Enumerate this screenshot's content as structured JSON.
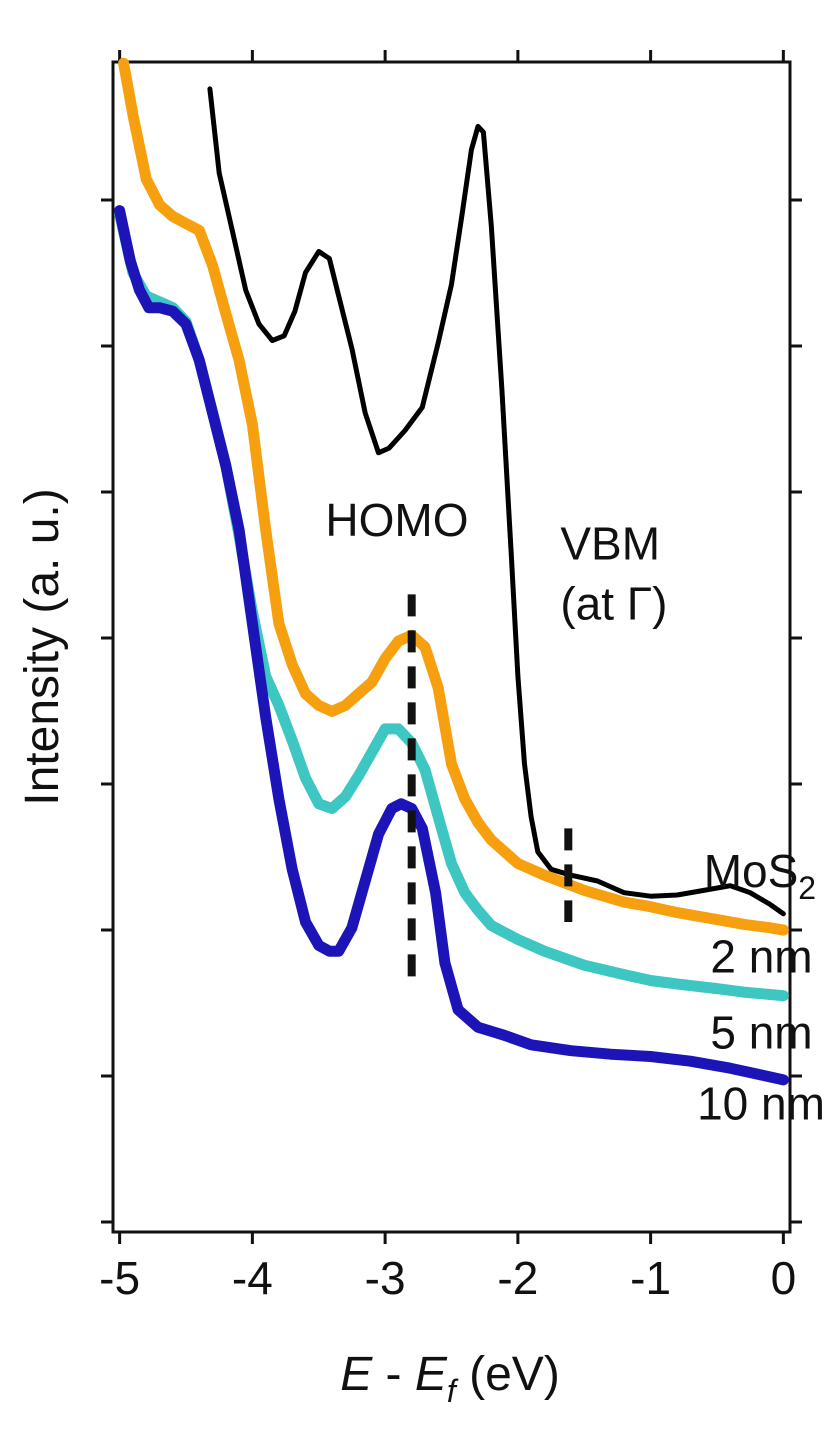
{
  "chart_data": {
    "type": "line",
    "xlabel": {
      "e1": "E",
      "sep": " - ",
      "e2": "E",
      "sub": "f",
      "unit": " (eV)"
    },
    "ylabel": "Intensity (a. u.)",
    "xlim": [
      -5.05,
      0.05
    ],
    "ylim": [
      0,
      1
    ],
    "x_ticks": [
      -5,
      -4,
      -3,
      -2,
      -1,
      0
    ],
    "x_tick_labels": [
      "-5",
      "-4",
      "-3",
      "-2",
      "-1",
      "0"
    ],
    "y_ticks_unlabeled": 8,
    "grid": false,
    "series": [
      {
        "name": "MoS2",
        "color": "#000000",
        "width": 5,
        "points": [
          [
            -4.32,
            0.977
          ],
          [
            -4.25,
            0.905
          ],
          [
            -4.15,
            0.855
          ],
          [
            -4.05,
            0.805
          ],
          [
            -3.95,
            0.776
          ],
          [
            -3.85,
            0.762
          ],
          [
            -3.76,
            0.766
          ],
          [
            -3.68,
            0.787
          ],
          [
            -3.6,
            0.82
          ],
          [
            -3.5,
            0.838
          ],
          [
            -3.42,
            0.832
          ],
          [
            -3.35,
            0.8
          ],
          [
            -3.25,
            0.755
          ],
          [
            -3.15,
            0.7
          ],
          [
            -3.05,
            0.666
          ],
          [
            -2.97,
            0.67
          ],
          [
            -2.85,
            0.685
          ],
          [
            -2.72,
            0.705
          ],
          [
            -2.6,
            0.76
          ],
          [
            -2.5,
            0.81
          ],
          [
            -2.42,
            0.87
          ],
          [
            -2.35,
            0.925
          ],
          [
            -2.3,
            0.945
          ],
          [
            -2.26,
            0.94
          ],
          [
            -2.2,
            0.86
          ],
          [
            -2.12,
            0.72
          ],
          [
            -2.05,
            0.58
          ],
          [
            -2.0,
            0.475
          ],
          [
            -1.95,
            0.4
          ],
          [
            -1.9,
            0.355
          ],
          [
            -1.85,
            0.325
          ],
          [
            -1.75,
            0.31
          ],
          [
            -1.6,
            0.305
          ],
          [
            -1.4,
            0.3
          ],
          [
            -1.2,
            0.29
          ],
          [
            -1.0,
            0.287
          ],
          [
            -0.8,
            0.288
          ],
          [
            -0.6,
            0.292
          ],
          [
            -0.4,
            0.296
          ],
          [
            -0.25,
            0.29
          ],
          [
            -0.1,
            0.28
          ],
          [
            0.0,
            0.272
          ]
        ]
      },
      {
        "name": "2 nm",
        "color": "#f6a00f",
        "width": 11,
        "points": [
          [
            -4.97,
            0.999
          ],
          [
            -4.9,
            0.955
          ],
          [
            -4.8,
            0.9
          ],
          [
            -4.7,
            0.878
          ],
          [
            -4.6,
            0.868
          ],
          [
            -4.5,
            0.862
          ],
          [
            -4.4,
            0.856
          ],
          [
            -4.3,
            0.826
          ],
          [
            -4.2,
            0.785
          ],
          [
            -4.1,
            0.745
          ],
          [
            -4.0,
            0.69
          ],
          [
            -3.9,
            0.6
          ],
          [
            -3.8,
            0.52
          ],
          [
            -3.7,
            0.485
          ],
          [
            -3.6,
            0.46
          ],
          [
            -3.5,
            0.45
          ],
          [
            -3.4,
            0.445
          ],
          [
            -3.3,
            0.45
          ],
          [
            -3.2,
            0.46
          ],
          [
            -3.1,
            0.47
          ],
          [
            -3.0,
            0.49
          ],
          [
            -2.9,
            0.505
          ],
          [
            -2.8,
            0.51
          ],
          [
            -2.7,
            0.5
          ],
          [
            -2.6,
            0.465
          ],
          [
            -2.5,
            0.4
          ],
          [
            -2.4,
            0.37
          ],
          [
            -2.3,
            0.35
          ],
          [
            -2.2,
            0.335
          ],
          [
            -2.0,
            0.315
          ],
          [
            -1.8,
            0.305
          ],
          [
            -1.5,
            0.292
          ],
          [
            -1.2,
            0.282
          ],
          [
            -1.0,
            0.278
          ],
          [
            -0.8,
            0.273
          ],
          [
            -0.5,
            0.267
          ],
          [
            -0.3,
            0.263
          ],
          [
            -0.1,
            0.26
          ],
          [
            0.0,
            0.258
          ]
        ]
      },
      {
        "name": "5 nm",
        "color": "#3ec6c2",
        "width": 11,
        "points": [
          [
            -5.0,
            0.87
          ],
          [
            -4.9,
            0.82
          ],
          [
            -4.8,
            0.8
          ],
          [
            -4.7,
            0.795
          ],
          [
            -4.6,
            0.79
          ],
          [
            -4.5,
            0.778
          ],
          [
            -4.4,
            0.745
          ],
          [
            -4.3,
            0.7
          ],
          [
            -4.2,
            0.655
          ],
          [
            -4.1,
            0.595
          ],
          [
            -4.0,
            0.53
          ],
          [
            -3.9,
            0.475
          ],
          [
            -3.8,
            0.45
          ],
          [
            -3.7,
            0.42
          ],
          [
            -3.6,
            0.388
          ],
          [
            -3.5,
            0.366
          ],
          [
            -3.4,
            0.362
          ],
          [
            -3.3,
            0.372
          ],
          [
            -3.2,
            0.39
          ],
          [
            -3.1,
            0.41
          ],
          [
            -3.0,
            0.43
          ],
          [
            -2.9,
            0.43
          ],
          [
            -2.8,
            0.418
          ],
          [
            -2.7,
            0.395
          ],
          [
            -2.6,
            0.355
          ],
          [
            -2.5,
            0.315
          ],
          [
            -2.4,
            0.29
          ],
          [
            -2.3,
            0.275
          ],
          [
            -2.2,
            0.262
          ],
          [
            -2.0,
            0.25
          ],
          [
            -1.8,
            0.24
          ],
          [
            -1.5,
            0.228
          ],
          [
            -1.2,
            0.22
          ],
          [
            -1.0,
            0.215
          ],
          [
            -0.8,
            0.212
          ],
          [
            -0.5,
            0.208
          ],
          [
            -0.3,
            0.205
          ],
          [
            -0.1,
            0.203
          ],
          [
            0.0,
            0.202
          ]
        ]
      },
      {
        "name": "10 nm",
        "color": "#1d14b8",
        "width": 11,
        "points": [
          [
            -5.0,
            0.873
          ],
          [
            -4.92,
            0.83
          ],
          [
            -4.85,
            0.805
          ],
          [
            -4.78,
            0.79
          ],
          [
            -4.7,
            0.79
          ],
          [
            -4.6,
            0.787
          ],
          [
            -4.5,
            0.776
          ],
          [
            -4.4,
            0.745
          ],
          [
            -4.3,
            0.7
          ],
          [
            -4.2,
            0.655
          ],
          [
            -4.1,
            0.6
          ],
          [
            -4.0,
            0.52
          ],
          [
            -3.9,
            0.44
          ],
          [
            -3.8,
            0.37
          ],
          [
            -3.7,
            0.31
          ],
          [
            -3.6,
            0.265
          ],
          [
            -3.5,
            0.245
          ],
          [
            -3.42,
            0.24
          ],
          [
            -3.35,
            0.24
          ],
          [
            -3.25,
            0.26
          ],
          [
            -3.15,
            0.3
          ],
          [
            -3.05,
            0.34
          ],
          [
            -2.95,
            0.362
          ],
          [
            -2.88,
            0.366
          ],
          [
            -2.8,
            0.362
          ],
          [
            -2.72,
            0.345
          ],
          [
            -2.62,
            0.29
          ],
          [
            -2.55,
            0.23
          ],
          [
            -2.45,
            0.19
          ],
          [
            -2.3,
            0.175
          ],
          [
            -2.1,
            0.168
          ],
          [
            -1.9,
            0.16
          ],
          [
            -1.6,
            0.155
          ],
          [
            -1.3,
            0.152
          ],
          [
            -1.0,
            0.15
          ],
          [
            -0.7,
            0.146
          ],
          [
            -0.4,
            0.14
          ],
          [
            -0.2,
            0.135
          ],
          [
            0.0,
            0.13
          ]
        ]
      }
    ],
    "series_labels": [
      {
        "key": "mos2",
        "main": "MoS",
        "sub": "2",
        "x": -0.6,
        "y": 0.295
      },
      {
        "key": "2nm",
        "main": "2 nm",
        "x": -0.55,
        "y": 0.222
      },
      {
        "key": "5nm",
        "main": "5 nm",
        "x": -0.55,
        "y": 0.157
      },
      {
        "key": "10nm",
        "main": "10 nm",
        "x": -0.65,
        "y": 0.096
      }
    ],
    "annotations": [
      {
        "key": "homo",
        "lines": [
          "HOMO"
        ],
        "x": -3.45,
        "y": 0.595,
        "dash_x": -2.8,
        "dash_y": [
          0.215,
          0.545
        ]
      },
      {
        "key": "vbm",
        "lines": [
          "VBM",
          "(at Γ)"
        ],
        "x": -1.68,
        "y": 0.575,
        "dash_x": -1.62,
        "dash_y": [
          0.265,
          0.345
        ]
      }
    ]
  }
}
